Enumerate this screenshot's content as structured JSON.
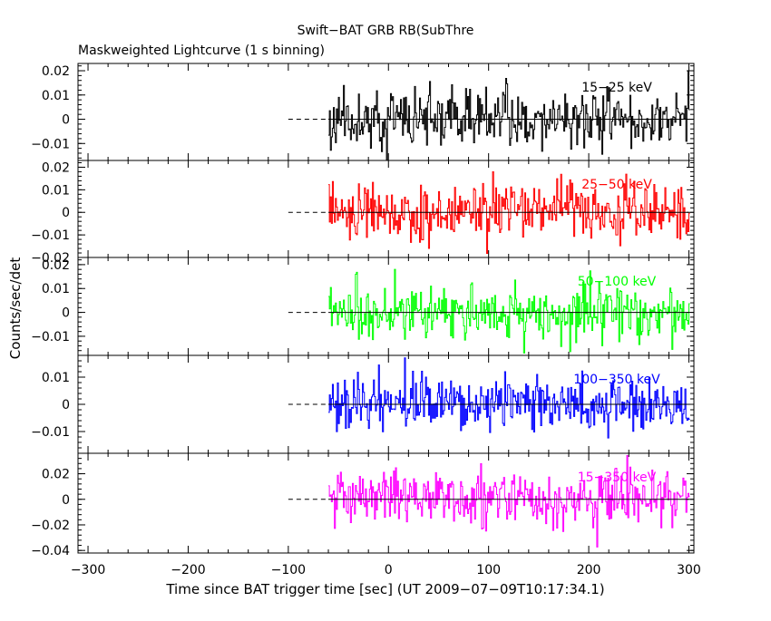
{
  "chart_data": {
    "type": "line",
    "title": "Swift−BAT GRB RB(SubThre",
    "subtitle": "Maskweighted Lightcurve (1 s binning)",
    "xlabel": "Time since BAT trigger time [sec] (UT 2009−07−09T10:17:34.1)",
    "ylabel": "Counts/sec/det",
    "xlim": [
      -310,
      305
    ],
    "xticks": [
      -300,
      -200,
      -100,
      0,
      100,
      200,
      300
    ],
    "xtick_labels": [
      "−300",
      "−200",
      "−100",
      "0",
      "100",
      "200",
      "300"
    ],
    "data_start": -60,
    "data_end": 300,
    "baseline": {
      "x": [
        -100,
        -60
      ],
      "y": 0,
      "style": "dashed"
    },
    "panels": [
      {
        "name": "15−25 keV",
        "color": "#000000",
        "ylim": [
          -0.017,
          0.023
        ],
        "yticks": [
          -0.01,
          0,
          0.01,
          0.02
        ],
        "ytick_labels": [
          "−0.01",
          "0",
          "0.01",
          "0.02"
        ],
        "noise_sigma": 0.0058,
        "seed": 11
      },
      {
        "name": "25−50 keV",
        "color": "#ff0000",
        "ylim": [
          -0.02,
          0.023
        ],
        "yticks": [
          -0.02,
          -0.01,
          0,
          0.01,
          0.02
        ],
        "ytick_labels": [
          "−0.02",
          "−0.01",
          "0",
          "0.01",
          "0.02"
        ],
        "noise_sigma": 0.0062,
        "seed": 23
      },
      {
        "name": "50−100 keV",
        "color": "#00ff00",
        "ylim": [
          -0.018,
          0.023
        ],
        "yticks": [
          -0.01,
          0,
          0.01,
          0.02
        ],
        "ytick_labels": [
          "−0.01",
          "0",
          "0.01",
          "0.02"
        ],
        "noise_sigma": 0.0058,
        "seed": 37
      },
      {
        "name": "100−350 keV",
        "color": "#0000ff",
        "ylim": [
          -0.018,
          0.018
        ],
        "yticks": [
          -0.01,
          0,
          0.01
        ],
        "ytick_labels": [
          "−0.01",
          "0",
          "0.01"
        ],
        "noise_sigma": 0.0052,
        "seed": 41
      },
      {
        "name": "15−350 keV",
        "color": "#ff00ff",
        "ylim": [
          -0.042,
          0.036
        ],
        "yticks": [
          -0.04,
          -0.02,
          0,
          0.02
        ],
        "ytick_labels": [
          "−0.04",
          "−0.02",
          "0",
          "0.02"
        ],
        "noise_sigma": 0.0105,
        "seed": 53
      }
    ]
  }
}
